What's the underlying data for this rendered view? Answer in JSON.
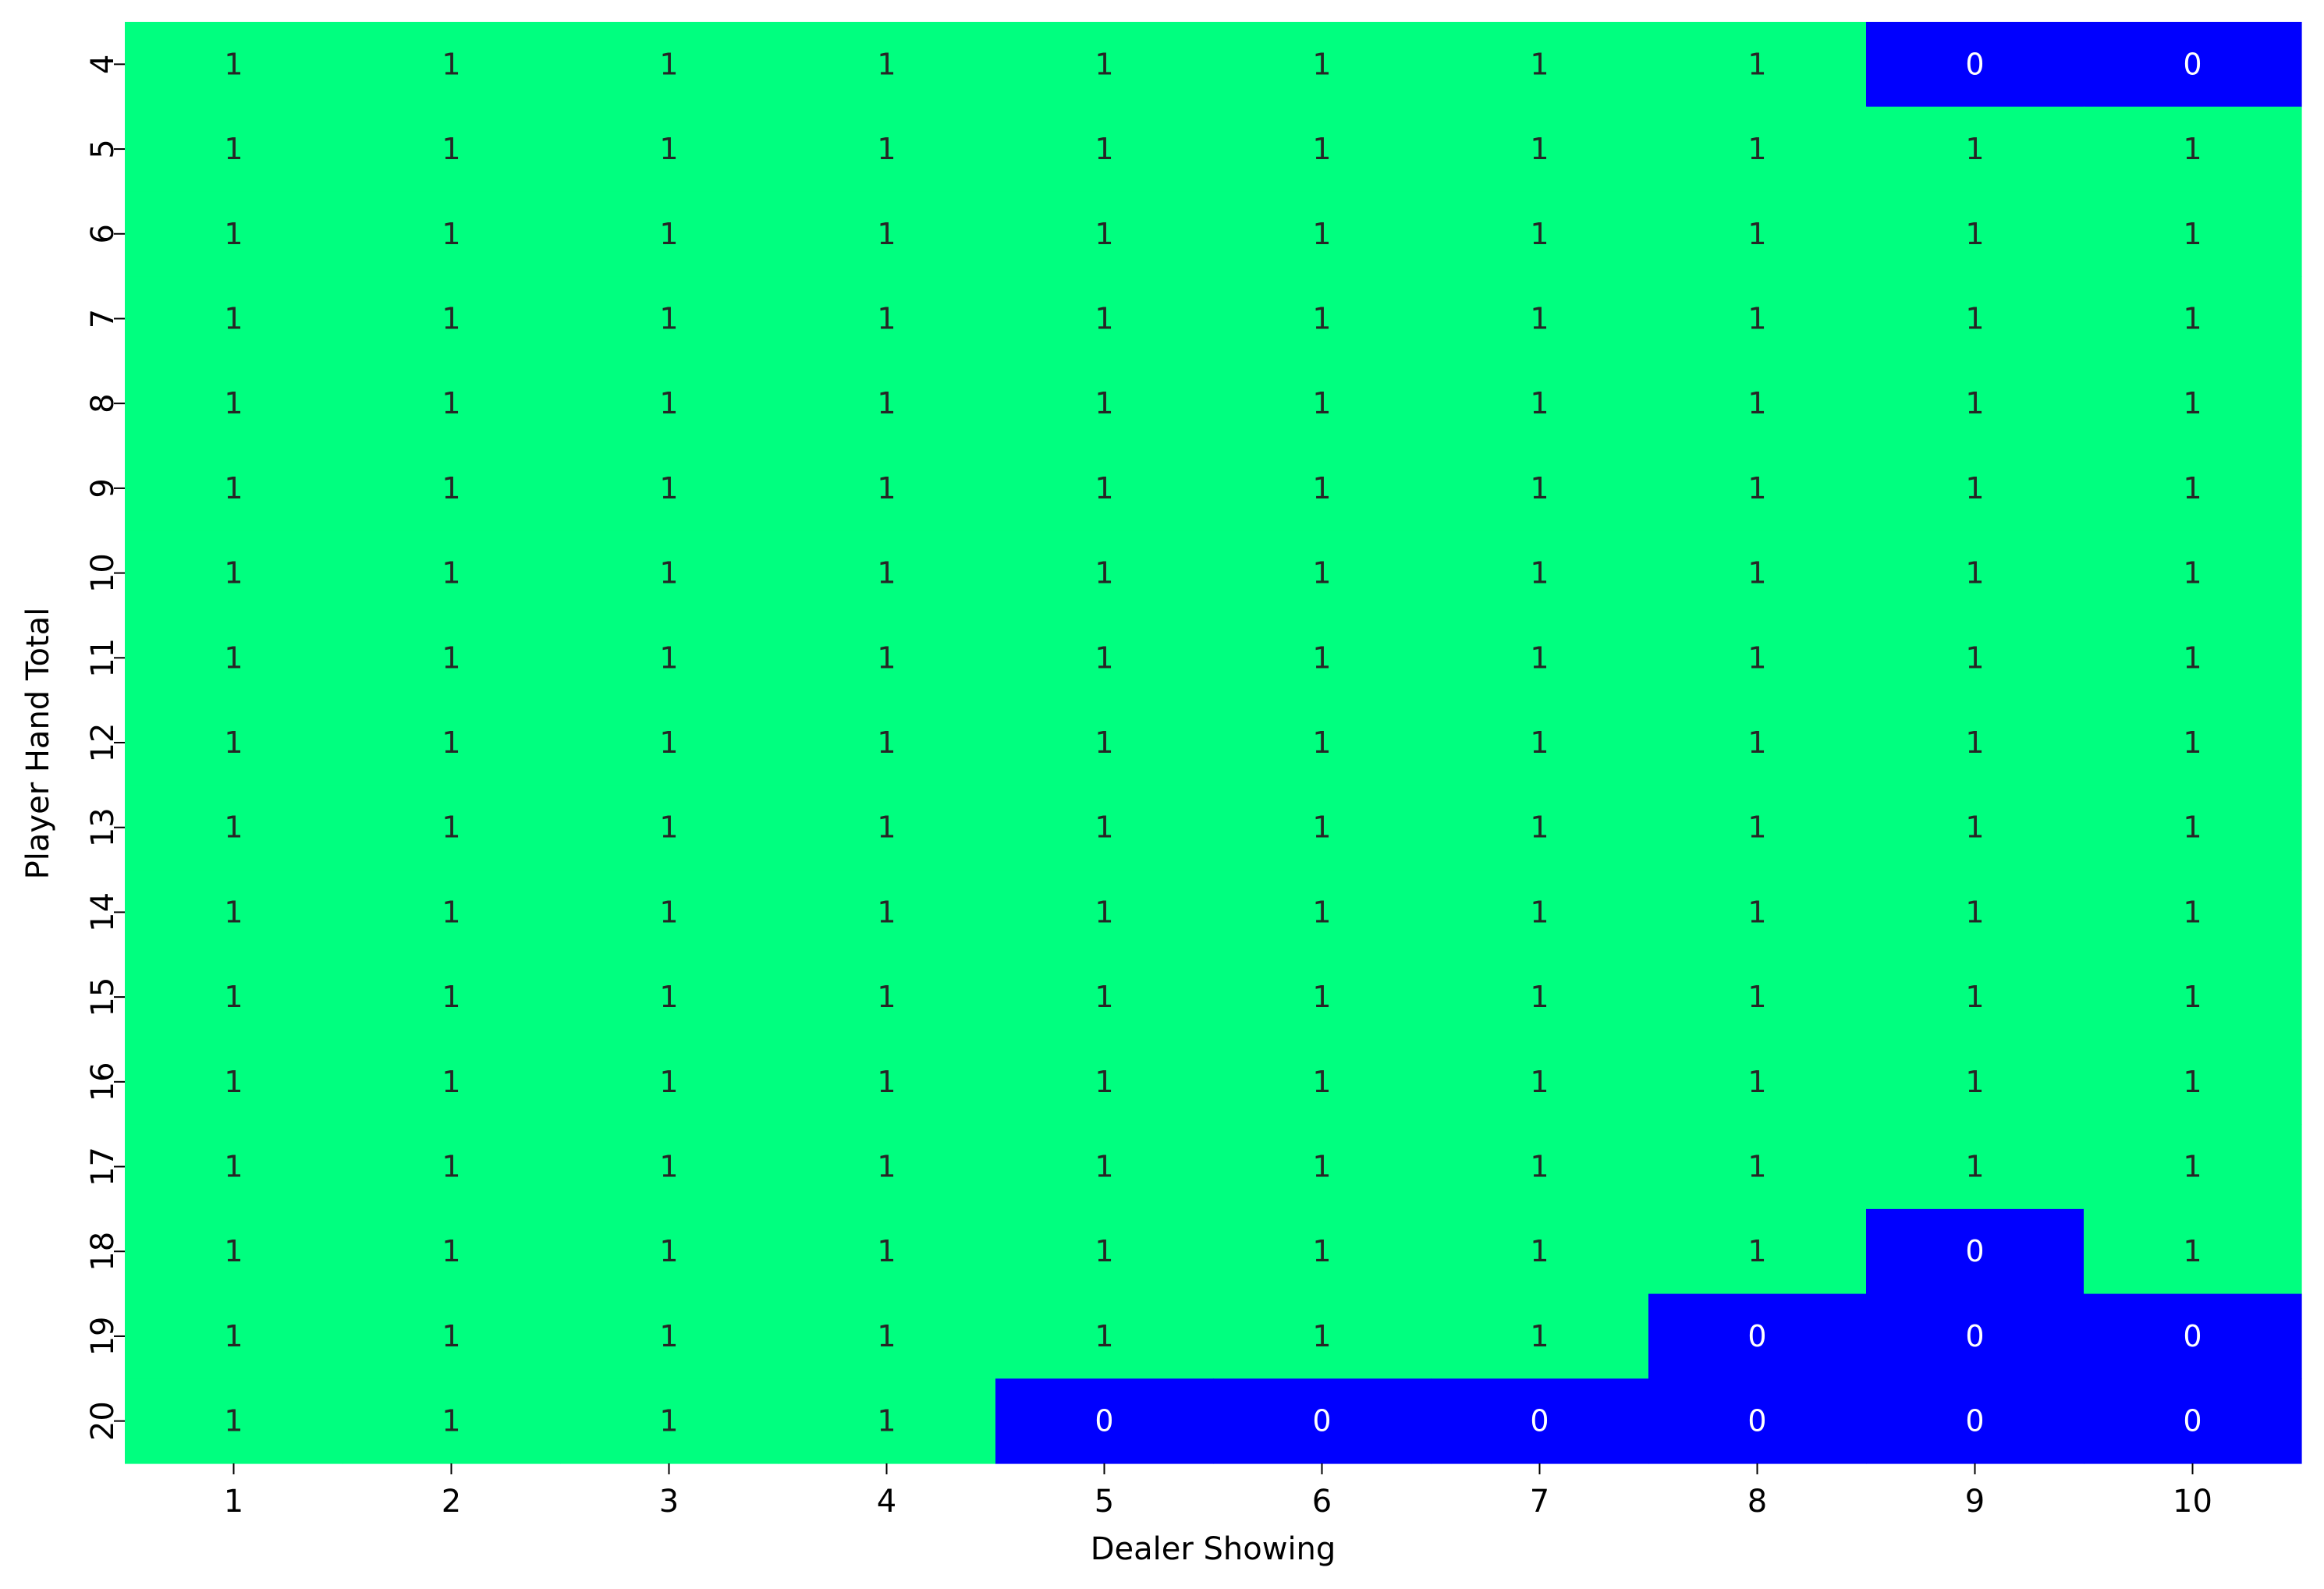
{
  "chart_data": {
    "type": "heatmap",
    "title": "",
    "xlabel": "Dealer Showing",
    "ylabel": "Player Hand Total",
    "x": [
      "1",
      "2",
      "3",
      "4",
      "5",
      "6",
      "7",
      "8",
      "9",
      "10"
    ],
    "y": [
      "4",
      "5",
      "6",
      "7",
      "8",
      "9",
      "10",
      "11",
      "12",
      "13",
      "14",
      "15",
      "16",
      "17",
      "18",
      "19",
      "20"
    ],
    "values": [
      [
        1,
        1,
        1,
        1,
        1,
        1,
        1,
        1,
        0,
        0
      ],
      [
        1,
        1,
        1,
        1,
        1,
        1,
        1,
        1,
        1,
        1
      ],
      [
        1,
        1,
        1,
        1,
        1,
        1,
        1,
        1,
        1,
        1
      ],
      [
        1,
        1,
        1,
        1,
        1,
        1,
        1,
        1,
        1,
        1
      ],
      [
        1,
        1,
        1,
        1,
        1,
        1,
        1,
        1,
        1,
        1
      ],
      [
        1,
        1,
        1,
        1,
        1,
        1,
        1,
        1,
        1,
        1
      ],
      [
        1,
        1,
        1,
        1,
        1,
        1,
        1,
        1,
        1,
        1
      ],
      [
        1,
        1,
        1,
        1,
        1,
        1,
        1,
        1,
        1,
        1
      ],
      [
        1,
        1,
        1,
        1,
        1,
        1,
        1,
        1,
        1,
        1
      ],
      [
        1,
        1,
        1,
        1,
        1,
        1,
        1,
        1,
        1,
        1
      ],
      [
        1,
        1,
        1,
        1,
        1,
        1,
        1,
        1,
        1,
        1
      ],
      [
        1,
        1,
        1,
        1,
        1,
        1,
        1,
        1,
        1,
        1
      ],
      [
        1,
        1,
        1,
        1,
        1,
        1,
        1,
        1,
        1,
        1
      ],
      [
        1,
        1,
        1,
        1,
        1,
        1,
        1,
        1,
        1,
        1
      ],
      [
        1,
        1,
        1,
        1,
        1,
        1,
        1,
        1,
        0,
        1
      ],
      [
        1,
        1,
        1,
        1,
        1,
        1,
        1,
        0,
        0,
        0
      ],
      [
        1,
        1,
        1,
        1,
        0,
        0,
        0,
        0,
        0,
        0
      ]
    ],
    "colors": {
      "1": "#00ff7f",
      "0": "#0000ff"
    },
    "label_colors": {
      "1": "#262626",
      "0": "#ffffff"
    },
    "legend": "none",
    "grid": false
  }
}
